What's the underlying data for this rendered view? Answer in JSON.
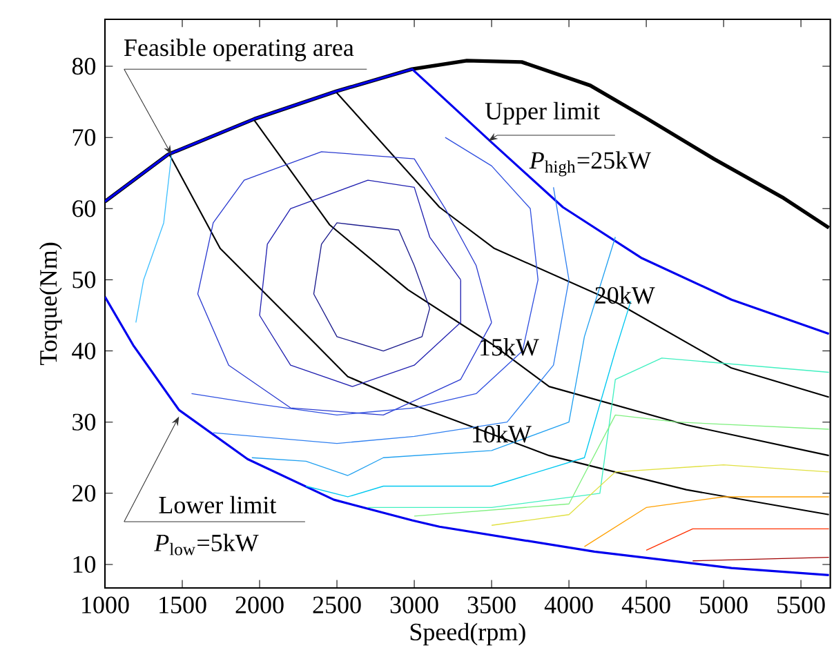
{
  "chart_data": {
    "type": "line",
    "xlabel": "Speed(rpm)",
    "ylabel": "Torque(Nm)",
    "xlim": [
      1000,
      5690
    ],
    "ylim": [
      6.7,
      86.6
    ],
    "xticks": [
      1000,
      1500,
      2000,
      2500,
      3000,
      3500,
      4000,
      4500,
      5000,
      5500
    ],
    "yticks": [
      10,
      20,
      30,
      40,
      50,
      60,
      70,
      80
    ],
    "series": [
      {
        "color": "#000000",
        "x": [
          1000,
          1408,
          1966,
          2498,
          2986,
          3340,
          3695,
          4138,
          4493,
          4936,
          5379,
          5681
        ],
        "values": [
          61,
          67.6,
          72.6,
          76.5,
          79.6,
          80.8,
          80.6,
          77.3,
          72.8,
          67,
          61.6,
          57.3
        ]
      },
      {
        "color": "#0000ee",
        "x": [
          1000,
          1408,
          1966,
          2498,
          2986,
          3500,
          3961,
          4466,
          5051,
          5681
        ],
        "values": [
          61,
          67.6,
          72.6,
          76.5,
          79.6,
          69.3,
          60.2,
          53.1,
          47.2,
          42.4
        ]
      },
      {
        "color": "#0000ee",
        "x": [
          1000,
          1183,
          1479,
          1922,
          2480,
          2986,
          3163,
          4165,
          5051,
          5681
        ],
        "values": [
          47.6,
          40.8,
          31.7,
          24.8,
          19.1,
          16.2,
          15.3,
          11.8,
          9.5,
          8.5
        ]
      },
      {
        "color": "#000000",
        "x": [
          1417,
          1745,
          2365,
          2570,
          2986,
          3872,
          4759,
          5681
        ],
        "values": [
          67.6,
          54.4,
          40.9,
          36.4,
          32.5,
          25.3,
          20.5,
          17
        ]
      },
      {
        "color": "#000000",
        "x": [
          1966,
          2454,
          2959,
          3500,
          3872,
          4759,
          5681
        ],
        "values": [
          72.4,
          57.7,
          48.6,
          41,
          35,
          29.6,
          25.3
        ]
      },
      {
        "color": "#000000",
        "x": [
          2498,
          3163,
          3518,
          4316,
          5051,
          5681
        ],
        "values": [
          76.3,
          60.2,
          54.4,
          46.7,
          37.6,
          33.5
        ]
      },
      {
        "color": "#1a1a8c",
        "x": [
          2350,
          2400,
          2500,
          2900,
          3000,
          3100
        ],
        "values": [
          48,
          55,
          58,
          57,
          52,
          46
        ]
      },
      {
        "color": "#1a1a8c",
        "x": [
          2350,
          2500,
          2800,
          3050,
          3100
        ],
        "values": [
          48,
          42,
          40,
          42,
          46
        ]
      },
      {
        "color": "#2020b0",
        "x": [
          2000,
          2050,
          2200,
          2700,
          3000,
          3100,
          3300
        ],
        "values": [
          45,
          55,
          60,
          64,
          63,
          56,
          50
        ]
      },
      {
        "color": "#2020b0",
        "x": [
          2000,
          2200,
          2600,
          3000,
          3300,
          3300
        ],
        "values": [
          45,
          38,
          35,
          38,
          44,
          50
        ]
      },
      {
        "color": "#2a3ad0",
        "x": [
          1600,
          1700,
          1900,
          2400,
          3000,
          3200,
          3400,
          3500
        ],
        "values": [
          48,
          58,
          64,
          68,
          67,
          60,
          52,
          44
        ]
      },
      {
        "color": "#2a3ad0",
        "x": [
          1600,
          1800,
          2200,
          2800,
          3300,
          3500
        ],
        "values": [
          48,
          38,
          32,
          31,
          36,
          44
        ]
      },
      {
        "color": "#3050e0",
        "x": [
          1560,
          2000,
          2500,
          3000,
          3400,
          3700,
          3800,
          3750,
          3500,
          3200
        ],
        "values": [
          34,
          32.5,
          31,
          32,
          34,
          40,
          50,
          60,
          66,
          70
        ]
      },
      {
        "color": "#3080f0",
        "x": [
          1700,
          2500,
          3000,
          3600,
          3900,
          4000,
          3900
        ],
        "values": [
          28.5,
          27,
          28,
          30,
          38,
          50,
          63
        ]
      },
      {
        "color": "#20a0f0",
        "x": [
          1950,
          2300,
          2570,
          2800,
          3500,
          4000,
          4100,
          4300
        ],
        "values": [
          25,
          24.5,
          22.5,
          25,
          26,
          30,
          42,
          56
        ]
      },
      {
        "color": "#00c8f0",
        "x": [
          2300,
          2570,
          2800,
          3500,
          4100,
          4300,
          4400
        ],
        "values": [
          21,
          19.5,
          21,
          21,
          25,
          40,
          47
        ]
      },
      {
        "color": "#40f0c0",
        "x": [
          2700,
          3500,
          4200,
          4300,
          4600,
          5681
        ],
        "values": [
          18,
          18,
          20,
          36,
          39,
          37
        ]
      },
      {
        "color": "#80f080",
        "x": [
          3000,
          4000,
          4300,
          4700,
          5681
        ],
        "values": [
          16.8,
          18.5,
          31,
          30,
          29
        ]
      },
      {
        "color": "#e0e040",
        "x": [
          3500,
          4000,
          4300,
          5000,
          5681
        ],
        "values": [
          15.5,
          17,
          23,
          24,
          23
        ]
      },
      {
        "color": "#ffa000",
        "x": [
          4100,
          4500,
          5000,
          5681
        ],
        "values": [
          12.5,
          18,
          19.5,
          19.5
        ]
      },
      {
        "color": "#ff3000",
        "x": [
          4500,
          4800,
          5681
        ],
        "values": [
          12,
          15,
          15
        ]
      },
      {
        "color": "#a00000",
        "x": [
          4800,
          5681
        ],
        "values": [
          10.5,
          11
        ]
      },
      {
        "color": "#40c0ff",
        "x": [
          1430,
          1380,
          1250,
          1200
        ],
        "values": [
          67.5,
          58,
          50,
          44
        ]
      }
    ],
    "annotations": [
      {
        "text": "Feasible operating area",
        "x": 1430,
        "y": 67.6
      },
      {
        "text": "Upper limit",
        "x": 3480,
        "y": 69.5
      },
      "*P*$_{high}$=25kW",
      {
        "text": "20kW",
        "x": 4360,
        "y": 46.3
      },
      {
        "text": "15kW",
        "x": 3400,
        "y": 42.1
      },
      {
        "text": "10kW",
        "x": 3562,
        "y": 26.8
      },
      "Lower limit",
      "*P*$_{low}$=5kW"
    ]
  }
}
